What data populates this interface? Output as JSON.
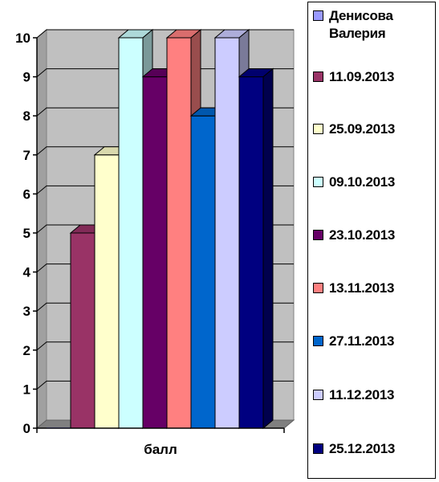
{
  "chart_data": {
    "type": "bar",
    "three_d": true,
    "categories": [
      "балл"
    ],
    "series": [
      {
        "name": "Денисова Валерия",
        "values": [
          0
        ],
        "color": "#9999ff"
      },
      {
        "name": "11.09.2013",
        "values": [
          5
        ],
        "color": "#993366"
      },
      {
        "name": "25.09.2013",
        "values": [
          7
        ],
        "color": "#ffffcc"
      },
      {
        "name": "09.10.2013",
        "values": [
          10
        ],
        "color": "#ccffff"
      },
      {
        "name": "23.10.2013",
        "values": [
          9
        ],
        "color": "#660066"
      },
      {
        "name": "13.11.2013",
        "values": [
          10
        ],
        "color": "#ff8080"
      },
      {
        "name": "27.11.2013",
        "values": [
          8
        ],
        "color": "#0066cc"
      },
      {
        "name": "11.12.2013",
        "values": [
          10
        ],
        "color": "#ccccff"
      },
      {
        "name": "25.12.2013",
        "values": [
          9
        ],
        "color": "#000080"
      }
    ],
    "yticks": [
      "0",
      "1",
      "2",
      "3",
      "4",
      "5",
      "6",
      "7",
      "8",
      "9",
      "10"
    ],
    "ylim": [
      0,
      10
    ],
    "xlabel": "",
    "ylabel": "",
    "grid": true,
    "wall_color": "#c0c0c0",
    "legend_position": "right"
  }
}
